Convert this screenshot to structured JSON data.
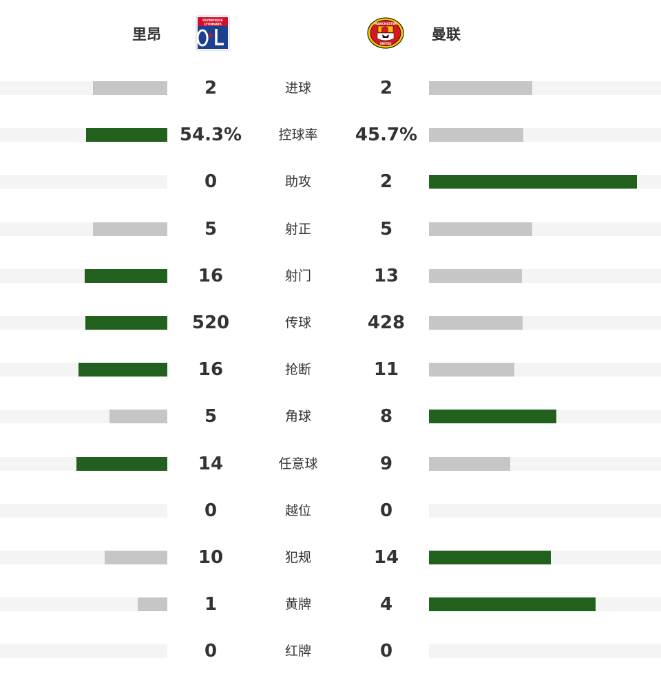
{
  "teams": {
    "home": {
      "name": "里昂",
      "logo": "olympique-lyonnais-crest",
      "logo_text_top": "OLYMPIQUE",
      "logo_text_bottom": "LYONNAIS"
    },
    "away": {
      "name": "曼联",
      "logo": "manchester-united-crest",
      "logo_text_top": "MANCHESTER",
      "logo_text_bottom": "UNITED"
    }
  },
  "colors": {
    "leader_bar": "#22611d",
    "other_bar": "#c6c6c6",
    "track": "#f4f4f4"
  },
  "stats": [
    {
      "label": "进球",
      "home": "2",
      "away": "2",
      "home_bar": 0.445,
      "away_bar": 0.445,
      "home_leads": false,
      "away_leads": false
    },
    {
      "label": "控球率",
      "home": "54.3%",
      "away": "45.7%",
      "home_bar": 0.485,
      "away_bar": 0.408,
      "home_leads": true,
      "away_leads": false
    },
    {
      "label": "助攻",
      "home": "0",
      "away": "2",
      "home_bar": 0,
      "away_bar": 0.895,
      "home_leads": false,
      "away_leads": true
    },
    {
      "label": "射正",
      "home": "5",
      "away": "5",
      "home_bar": 0.445,
      "away_bar": 0.445,
      "home_leads": false,
      "away_leads": false
    },
    {
      "label": "射门",
      "home": "16",
      "away": "13",
      "home_bar": 0.495,
      "away_bar": 0.402,
      "home_leads": true,
      "away_leads": false
    },
    {
      "label": "传球",
      "home": "520",
      "away": "428",
      "home_bar": 0.49,
      "away_bar": 0.405,
      "home_leads": true,
      "away_leads": false
    },
    {
      "label": "抢断",
      "home": "16",
      "away": "11",
      "home_bar": 0.53,
      "away_bar": 0.367,
      "home_leads": true,
      "away_leads": false
    },
    {
      "label": "角球",
      "home": "5",
      "away": "8",
      "home_bar": 0.344,
      "away_bar": 0.55,
      "home_leads": false,
      "away_leads": true
    },
    {
      "label": "任意球",
      "home": "14",
      "away": "9",
      "home_bar": 0.544,
      "away_bar": 0.35,
      "home_leads": true,
      "away_leads": false
    },
    {
      "label": "越位",
      "home": "0",
      "away": "0",
      "home_bar": 0,
      "away_bar": 0,
      "home_leads": false,
      "away_leads": false
    },
    {
      "label": "犯规",
      "home": "10",
      "away": "14",
      "home_bar": 0.374,
      "away_bar": 0.525,
      "home_leads": false,
      "away_leads": true
    },
    {
      "label": "黄牌",
      "home": "1",
      "away": "4",
      "home_bar": 0.178,
      "away_bar": 0.718,
      "home_leads": false,
      "away_leads": true
    },
    {
      "label": "红牌",
      "home": "0",
      "away": "0",
      "home_bar": 0,
      "away_bar": 0,
      "home_leads": false,
      "away_leads": false
    }
  ]
}
